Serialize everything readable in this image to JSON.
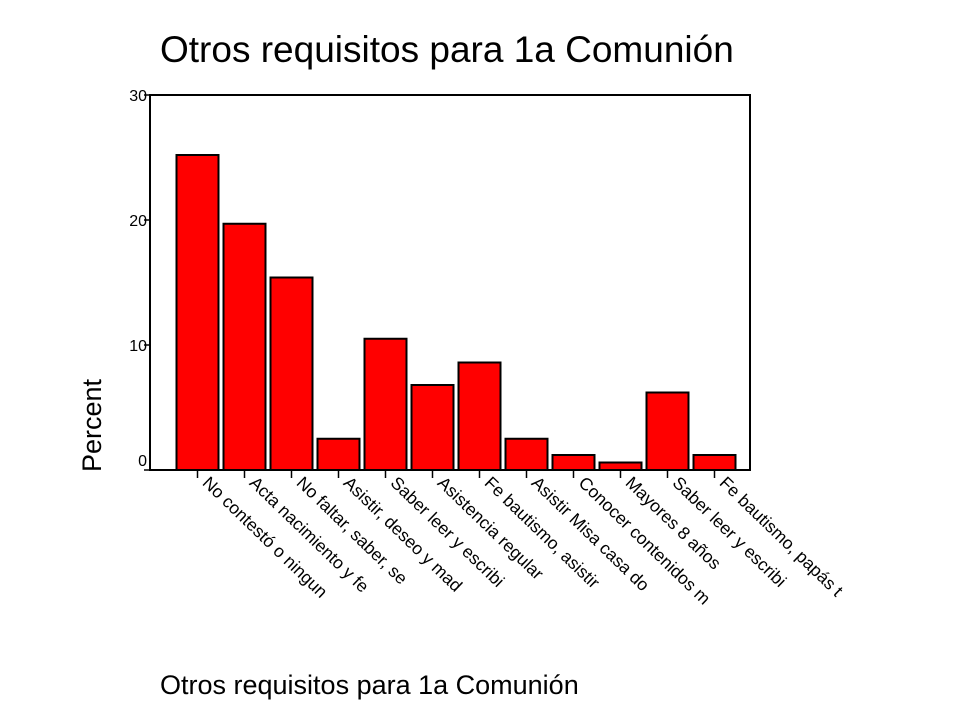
{
  "chart_data": {
    "type": "bar",
    "title": "Otros requisitos para 1a Comunión",
    "xlabel": "Otros requisitos para 1a Comunión",
    "ylabel": "Percent",
    "ylim": [
      0,
      30
    ],
    "yticks": [
      0,
      10,
      20,
      30
    ],
    "grid": false,
    "categories": [
      "No contestó o ningun",
      "Acta nacimiento y fe",
      "No faltar, saber, se",
      "Asistir, deseo y mad",
      "Saber leer y escribi",
      "Asistencia regular",
      "Fe bautismo, asistir",
      "Asistir Misa casa do",
      "Conocer contenidos m",
      "Mayores 8 años",
      "Saber leer y escribi",
      "Fe bautismo, papás t"
    ],
    "values": [
      25.2,
      19.7,
      15.4,
      2.5,
      10.5,
      6.8,
      8.6,
      2.5,
      1.2,
      0.6,
      6.2,
      1.2
    ],
    "bar_color": "#ff0000"
  }
}
